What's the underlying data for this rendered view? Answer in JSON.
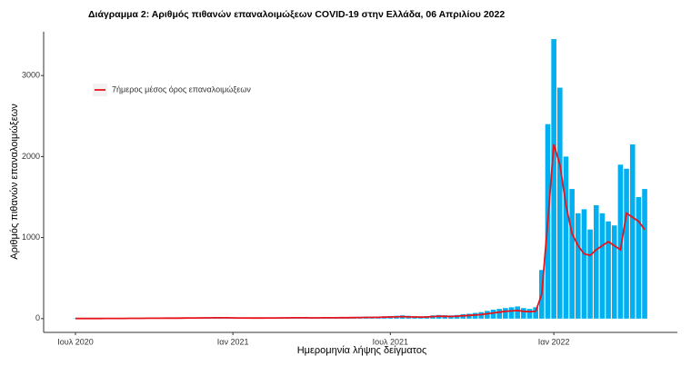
{
  "chart_data": {
    "type": "bar-line",
    "title": "Διάγραμμα 2: Αριθμός πιθανών επαναλοιμώξεων COVID-19 στην Ελλάδα, 06 Απριλίου 2022",
    "x_label": "Ημερομηνία λήψης δείγματος",
    "y_label": "Αριθμός πιθανών επαναλοιμώξεων",
    "categories": [
      "Ιουλ 2020",
      null,
      null,
      null,
      null,
      null,
      null,
      null,
      null,
      null,
      null,
      null,
      null,
      null,
      null,
      null,
      null,
      null,
      null,
      null,
      null,
      null,
      null,
      null,
      null,
      null,
      "Ιαν 2021",
      null,
      null,
      null,
      null,
      null,
      null,
      null,
      null,
      null,
      null,
      null,
      null,
      null,
      null,
      null,
      null,
      null,
      null,
      null,
      null,
      null,
      null,
      null,
      null,
      null,
      "Ιουλ 2021",
      null,
      null,
      null,
      null,
      null,
      null,
      null,
      null,
      null,
      null,
      null,
      null,
      null,
      null,
      null,
      null,
      null,
      null,
      null,
      null,
      null,
      null,
      null,
      null,
      null,
      null,
      "Ιαν 2022",
      null,
      null,
      null,
      null,
      null,
      null,
      null,
      null,
      null,
      null,
      null,
      null,
      null,
      null,
      null
    ],
    "series": [
      {
        "type": "bar",
        "color": "#00b0f0",
        "values": [
          3,
          3,
          4,
          3,
          3,
          5,
          4,
          5,
          4,
          6,
          6,
          5,
          7,
          8,
          7,
          9,
          8,
          9,
          10,
          12,
          12,
          14,
          13,
          15,
          15,
          14,
          13,
          12,
          12,
          10,
          10,
          11,
          12,
          12,
          14,
          13,
          15,
          15,
          14,
          13,
          14,
          15,
          16,
          17,
          18,
          18,
          20,
          22,
          24,
          25,
          25,
          28,
          32,
          35,
          40,
          35,
          30,
          28,
          32,
          40,
          45,
          42,
          40,
          45,
          55,
          60,
          70,
          80,
          95,
          110,
          120,
          130,
          140,
          150,
          130,
          120,
          140,
          600,
          2400,
          3450,
          2850,
          2000,
          1600,
          1300,
          1350,
          1100,
          1400,
          1300,
          1200,
          1150,
          1900,
          1850,
          2150,
          1500,
          1600
        ]
      },
      {
        "type": "line",
        "name": "7ήμερος μέσος όρος επαναλοιμώξεων",
        "color": "#e8141c",
        "values": [
          2,
          2,
          2,
          2,
          2,
          3,
          3,
          3,
          3,
          4,
          4,
          4,
          5,
          5,
          5,
          6,
          6,
          6,
          7,
          8,
          8,
          9,
          9,
          10,
          10,
          10,
          9,
          8,
          8,
          7,
          7,
          7,
          8,
          8,
          9,
          9,
          10,
          10,
          10,
          9,
          9,
          10,
          10,
          11,
          12,
          12,
          13,
          14,
          15,
          15,
          16,
          18,
          20,
          22,
          25,
          22,
          20,
          18,
          20,
          25,
          30,
          28,
          26,
          30,
          35,
          40,
          45,
          50,
          60,
          70,
          80,
          90,
          95,
          100,
          90,
          85,
          90,
          300,
          1200,
          2150,
          1900,
          1400,
          1050,
          900,
          800,
          780,
          850,
          900,
          950,
          900,
          850,
          1300,
          1250,
          1200,
          1100
        ]
      }
    ],
    "ylim": [
      -170,
      3540
    ],
    "yticks": [
      0,
      1000,
      2000,
      3000
    ],
    "legend": "top-left",
    "grid": false
  }
}
